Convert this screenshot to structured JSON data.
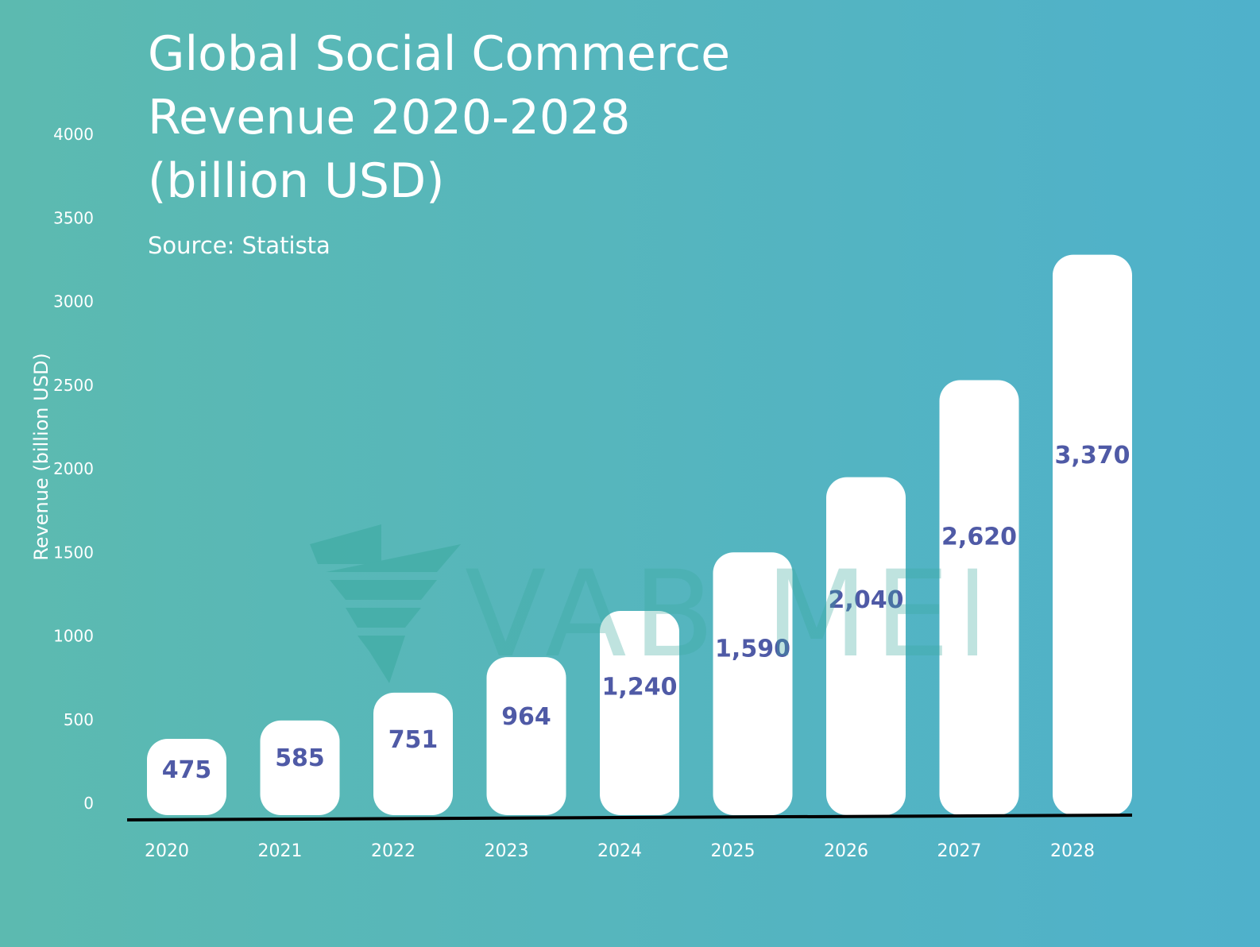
{
  "chart_data": {
    "type": "bar",
    "title": "Global Social Commerce\nRevenue 2020-2028\n(billion USD)",
    "subtitle": "Source: Statista",
    "xlabel": "",
    "ylabel": "Revenue (billion USD)",
    "categories": [
      "2020",
      "2021",
      "2022",
      "2023",
      "2024",
      "2025",
      "2026",
      "2027",
      "2028"
    ],
    "values": [
      475,
      585,
      751,
      964,
      1240,
      1590,
      2040,
      2620,
      3370
    ],
    "value_labels": [
      "475",
      "585",
      "751",
      "964",
      "1,240",
      "1,590",
      "2,040",
      "2,620",
      "3,370"
    ],
    "y_ticks": [
      "0",
      "500",
      "1000",
      "1500",
      "2000",
      "2500",
      "3000",
      "3500",
      "4000"
    ],
    "ylim": [
      0,
      4000
    ],
    "grid": false,
    "legend": "none",
    "bar_color": "#ffffff",
    "label_color": "#4f5aa6",
    "background_colors": [
      "#5cbab0",
      "#4fb1cb"
    ]
  },
  "watermark": {
    "text": "VAB MEDIA",
    "color": "#3aa99f"
  }
}
